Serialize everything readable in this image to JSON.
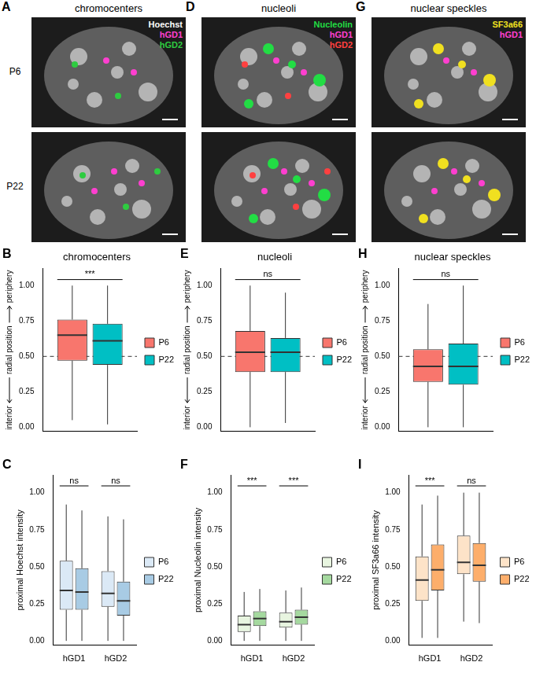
{
  "image_rows": [
    "P6",
    "P22"
  ],
  "image_panels": [
    {
      "letter": "A",
      "title": "chromocenters",
      "channels": [
        {
          "label": "Hoechst",
          "color": "#ffffff"
        },
        {
          "label": "hGD1",
          "color": "#ff3fd0"
        },
        {
          "label": "hGD2",
          "color": "#2ecc40"
        }
      ]
    },
    {
      "letter": "D",
      "title": "nucleoli",
      "channels": [
        {
          "label": "Nucleolin",
          "color": "#22dd44"
        },
        {
          "label": "hGD1",
          "color": "#ff3fd0"
        },
        {
          "label": "hGD2",
          "color": "#ff4040"
        }
      ]
    },
    {
      "letter": "G",
      "title": "nuclear speckles",
      "channels": [
        {
          "label": "SF3a66",
          "color": "#f0e020"
        },
        {
          "label": "hGD1",
          "color": "#ff3fd0"
        }
      ]
    }
  ],
  "chart_data": [
    {
      "panel": "B",
      "type": "boxplot",
      "title": "chromocenters",
      "ylabel": "radial position",
      "ylabel_low": "interior",
      "ylabel_high": "periphery",
      "categories": [
        null
      ],
      "series": [
        {
          "name": "P6",
          "color": "#F8766D",
          "values": [
            [
              0.05,
              0.47,
              0.65,
              0.76,
              1.0
            ]
          ]
        },
        {
          "name": "P22",
          "color": "#00BFC4",
          "values": [
            [
              0.02,
              0.44,
              0.61,
              0.73,
              1.0
            ]
          ]
        }
      ],
      "significance": [
        "***"
      ],
      "reference_line": 0.5,
      "ylim": [
        -0.03,
        1.12
      ],
      "yticks": [
        {
          "value": 0,
          "label": "0.00"
        },
        0.25,
        {
          "value": 0.5,
          "label": "0.50"
        },
        0.75,
        {
          "value": 1,
          "label": "1.00"
        }
      ],
      "grid": false,
      "legend": "right"
    },
    {
      "panel": "E",
      "type": "boxplot",
      "title": "nucleoli",
      "ylabel": "radial position",
      "ylabel_low": "interior",
      "ylabel_high": "periphery",
      "categories": [
        null
      ],
      "series": [
        {
          "name": "P6",
          "color": "#F8766D",
          "values": [
            [
              0.0,
              0.39,
              0.53,
              0.68,
              1.0
            ]
          ]
        },
        {
          "name": "P22",
          "color": "#00BFC4",
          "values": [
            [
              0.03,
              0.39,
              0.53,
              0.63,
              0.95
            ]
          ]
        }
      ],
      "significance": [
        "ns"
      ],
      "reference_line": 0.5,
      "ylim": [
        -0.03,
        1.12
      ],
      "yticks": [
        {
          "value": 0,
          "label": "0.00"
        },
        0.25,
        {
          "value": 0.5,
          "label": "0.50"
        },
        0.75,
        {
          "value": 1,
          "label": "1.00"
        }
      ],
      "grid": false,
      "legend": "right"
    },
    {
      "panel": "H",
      "type": "boxplot",
      "title": "nuclear speckles",
      "ylabel": "radial position",
      "ylabel_low": "interior",
      "ylabel_high": "periphery",
      "categories": [
        null
      ],
      "series": [
        {
          "name": "P6",
          "color": "#F8766D",
          "values": [
            [
              0.0,
              0.32,
              0.43,
              0.55,
              0.87
            ]
          ]
        },
        {
          "name": "P22",
          "color": "#00BFC4",
          "values": [
            [
              0.0,
              0.3,
              0.43,
              0.59,
              1.0
            ]
          ]
        }
      ],
      "significance": [
        "ns"
      ],
      "reference_line": 0.5,
      "ylim": [
        -0.03,
        1.12
      ],
      "yticks": [
        {
          "value": 0,
          "label": "0.00"
        },
        0.25,
        {
          "value": 0.5,
          "label": "0.50"
        },
        0.75,
        {
          "value": 1,
          "label": "1.00"
        }
      ],
      "grid": false,
      "legend": "right"
    },
    {
      "panel": "C",
      "type": "boxplot",
      "ylabel": "proximal Hoechst intensity",
      "categories": [
        "hGD1",
        "hGD2"
      ],
      "series": [
        {
          "name": "P6",
          "color": "#dbe9f6",
          "values": [
            [
              0.0,
              0.21,
              0.34,
              0.54,
              0.92
            ],
            [
              0.0,
              0.23,
              0.32,
              0.47,
              0.84
            ]
          ]
        },
        {
          "name": "P22",
          "color": "#a8cbe4",
          "values": [
            [
              0.0,
              0.21,
              0.33,
              0.49,
              0.88
            ],
            [
              0.0,
              0.17,
              0.27,
              0.4,
              0.82
            ]
          ]
        }
      ],
      "significance": [
        "ns",
        "ns"
      ],
      "ylim": [
        -0.03,
        1.12
      ],
      "yticks": [
        {
          "value": 0,
          "label": "0.00"
        },
        0.25,
        {
          "value": 0.5,
          "label": "0.50"
        },
        0.75,
        {
          "value": 1,
          "label": "1.00"
        }
      ],
      "grid": false,
      "legend": "right"
    },
    {
      "panel": "F",
      "type": "boxplot",
      "ylabel": "proximal Nucleolin intensity",
      "categories": [
        "hGD1",
        "hGD2"
      ],
      "series": [
        {
          "name": "P6",
          "color": "#e8f5e0",
          "values": [
            [
              0.0,
              0.06,
              0.11,
              0.17,
              0.33
            ],
            [
              0.0,
              0.09,
              0.13,
              0.19,
              0.34
            ]
          ]
        },
        {
          "name": "P22",
          "color": "#a5d99f",
          "values": [
            [
              0.0,
              0.1,
              0.15,
              0.2,
              0.35
            ],
            [
              0.0,
              0.11,
              0.16,
              0.21,
              0.36
            ]
          ]
        }
      ],
      "significance": [
        "***",
        "***"
      ],
      "ylim": [
        -0.03,
        1.12
      ],
      "yticks": [
        {
          "value": 0,
          "label": "0.00"
        },
        0.25,
        {
          "value": 0.5,
          "label": "0.50"
        },
        0.75,
        {
          "value": 1,
          "label": "1.00"
        }
      ],
      "grid": false,
      "legend": "right"
    },
    {
      "panel": "I",
      "type": "boxplot",
      "ylabel": "proximal SF3a66 intensity",
      "categories": [
        "hGD1",
        "hGD2"
      ],
      "series": [
        {
          "name": "P6",
          "color": "#fde3c8",
          "values": [
            [
              0.02,
              0.27,
              0.41,
              0.57,
              0.92
            ],
            [
              0.13,
              0.45,
              0.53,
              0.71,
              1.0
            ]
          ]
        },
        {
          "name": "P22",
          "color": "#fdae6b",
          "values": [
            [
              0.02,
              0.34,
              0.48,
              0.65,
              0.98
            ],
            [
              0.12,
              0.4,
              0.51,
              0.66,
              1.0
            ]
          ]
        }
      ],
      "significance": [
        "***",
        "ns"
      ],
      "ylim": [
        -0.03,
        1.12
      ],
      "yticks": [
        {
          "value": 0,
          "label": "0.00"
        },
        0.25,
        {
          "value": 0.5,
          "label": "0.50"
        },
        0.75,
        {
          "value": 1,
          "label": "1.00"
        }
      ],
      "grid": false,
      "legend": "right"
    }
  ]
}
